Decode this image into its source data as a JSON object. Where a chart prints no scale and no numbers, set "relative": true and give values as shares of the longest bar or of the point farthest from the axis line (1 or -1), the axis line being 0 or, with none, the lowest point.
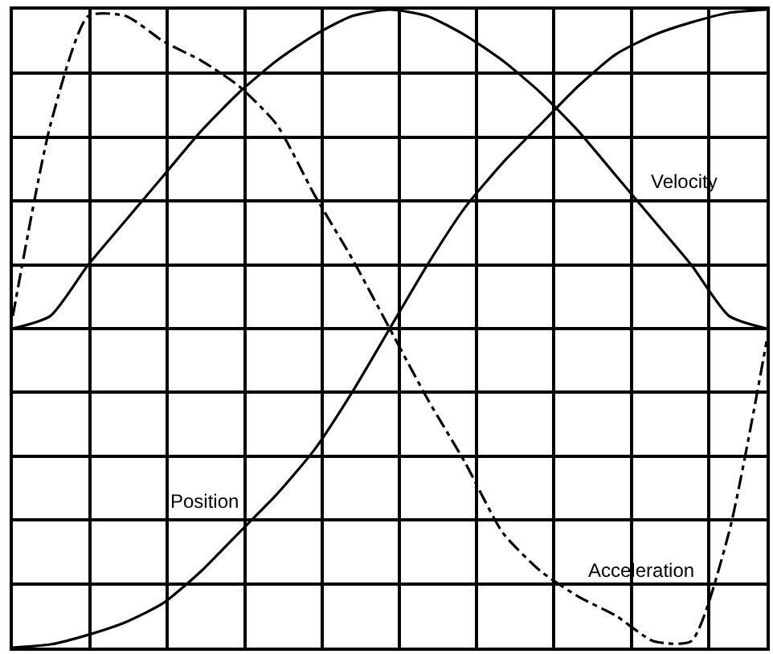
{
  "chart_data": {
    "type": "line",
    "relative": true,
    "grid": true,
    "legend": false,
    "marker": "none",
    "categories": [
      null,
      null,
      null,
      null,
      null,
      null,
      null,
      null,
      null,
      null,
      null,
      null,
      null,
      null,
      null,
      null,
      null,
      null,
      null,
      null,
      null
    ],
    "series": [
      {
        "name": "Position",
        "color": "#000000",
        "line_style": "solid",
        "values": [
          0,
          0.005,
          0.02,
          0.04,
          0.07,
          0.12,
          0.18,
          0.24,
          0.31,
          0.4,
          0.5,
          0.6,
          0.69,
          0.76,
          0.82,
          0.88,
          0.93,
          0.96,
          0.98,
          0.995,
          1.0
        ]
      },
      {
        "name": "Velocity",
        "color": "#000000",
        "line_style": "solid",
        "values": [
          0.5,
          0.52,
          0.6,
          0.67,
          0.74,
          0.81,
          0.87,
          0.92,
          0.96,
          0.99,
          1.0,
          0.99,
          0.96,
          0.92,
          0.87,
          0.81,
          0.74,
          0.67,
          0.6,
          0.52,
          0.5
        ]
      },
      {
        "name": "Acceleration",
        "color": "#000000",
        "line_style": "dashed",
        "values": [
          0.52,
          0.82,
          0.99,
          0.99,
          0.95,
          0.92,
          0.88,
          0.82,
          0.71,
          0.61,
          0.5,
          0.39,
          0.29,
          0.18,
          0.12,
          0.08,
          0.05,
          0.01,
          0.01,
          0.18,
          0.48
        ]
      }
    ]
  }
}
